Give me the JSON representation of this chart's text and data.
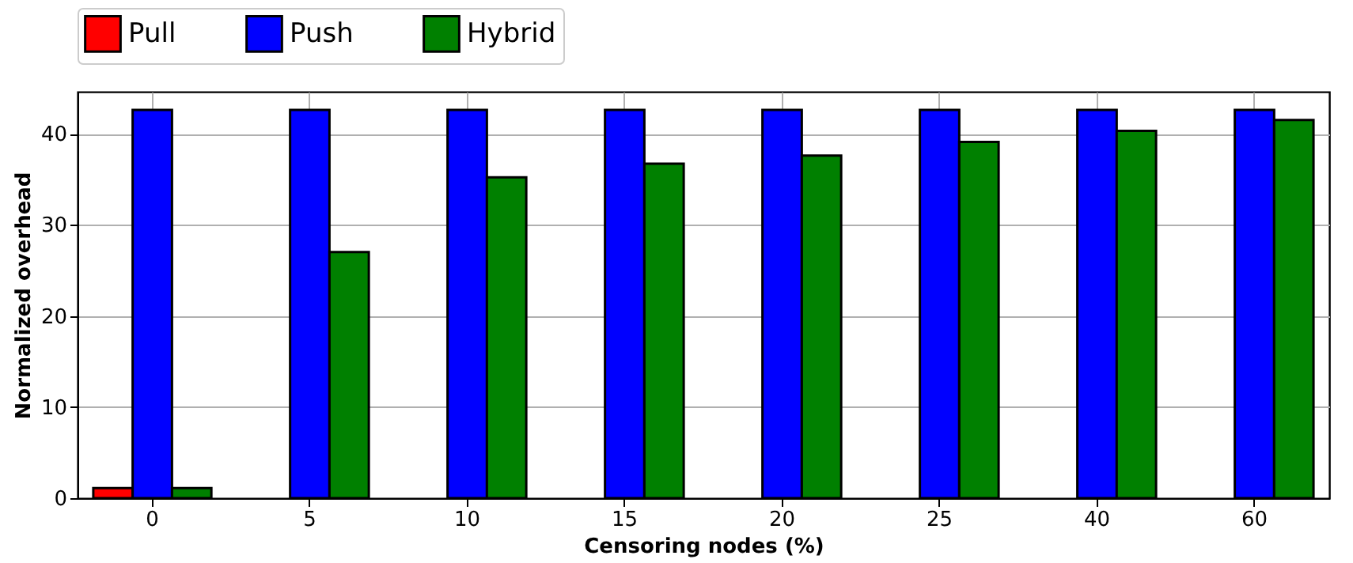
{
  "chart_data": {
    "type": "bar",
    "xlabel": "Censoring nodes (%)",
    "ylabel": "Normalized overhead",
    "categories": [
      "0",
      "5",
      "10",
      "15",
      "20",
      "25",
      "40",
      "60"
    ],
    "series": [
      {
        "name": "Pull",
        "color": "#ff0000",
        "values": [
          1.1,
          null,
          null,
          null,
          null,
          null,
          null,
          null
        ]
      },
      {
        "name": "Push",
        "color": "#0000ff",
        "values": [
          42.6,
          42.6,
          42.6,
          42.6,
          42.6,
          42.6,
          42.6,
          42.6
        ]
      },
      {
        "name": "Hybrid",
        "color": "#008000",
        "values": [
          1.1,
          27.0,
          35.2,
          36.7,
          37.6,
          39.1,
          40.3,
          41.5
        ]
      }
    ],
    "ylim": [
      0,
      44.6
    ],
    "yticks": [
      0,
      10,
      20,
      30,
      40
    ],
    "grid": true,
    "legend": "top"
  }
}
